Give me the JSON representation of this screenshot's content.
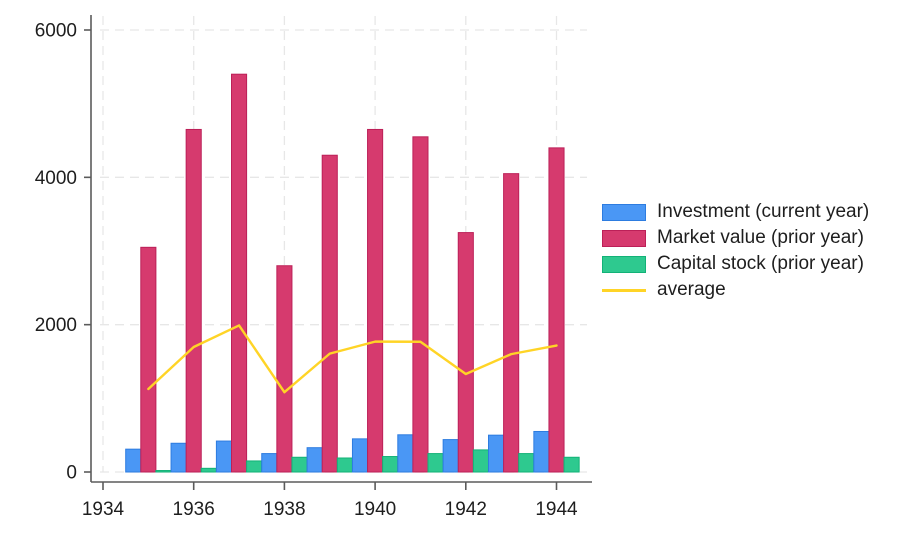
{
  "chart_data": {
    "type": "bar",
    "title": "",
    "xlabel": "",
    "ylabel": "",
    "categories": [
      1935,
      1936,
      1937,
      1938,
      1939,
      1940,
      1941,
      1942,
      1943,
      1944
    ],
    "series": [
      {
        "name": "Investment (current year)",
        "color": "#4a97f5",
        "border": "#2d7ce0",
        "values": [
          310,
          390,
          420,
          250,
          330,
          450,
          505,
          440,
          500,
          550
        ]
      },
      {
        "name": "Market value (prior year)",
        "color": "#d63a6e",
        "border": "#bc2058",
        "values": [
          3050,
          4650,
          5400,
          2800,
          4300,
          4650,
          4550,
          3250,
          4050,
          4400
        ]
      },
      {
        "name": "Capital stock (prior year)",
        "color": "#2ec98f",
        "border": "#12b277",
        "values": [
          20,
          50,
          150,
          200,
          190,
          210,
          250,
          300,
          250,
          200
        ]
      }
    ],
    "line_series": {
      "name": "average",
      "color": "#ffd426",
      "values": [
        1127,
        1697,
        1990,
        1083,
        1607,
        1770,
        1768,
        1330,
        1600,
        1717
      ]
    },
    "x_ticks": [
      1934,
      1936,
      1938,
      1940,
      1942,
      1944
    ],
    "y_ticks": [
      0,
      2000,
      4000,
      6000
    ],
    "ylim": [
      0,
      6000
    ],
    "grid": true,
    "legend_position": "right"
  },
  "colors": {
    "background": "#ffffff",
    "axis": "#5b5b5b",
    "grid": "#e7e7e7",
    "text": "#1e1e1e"
  }
}
